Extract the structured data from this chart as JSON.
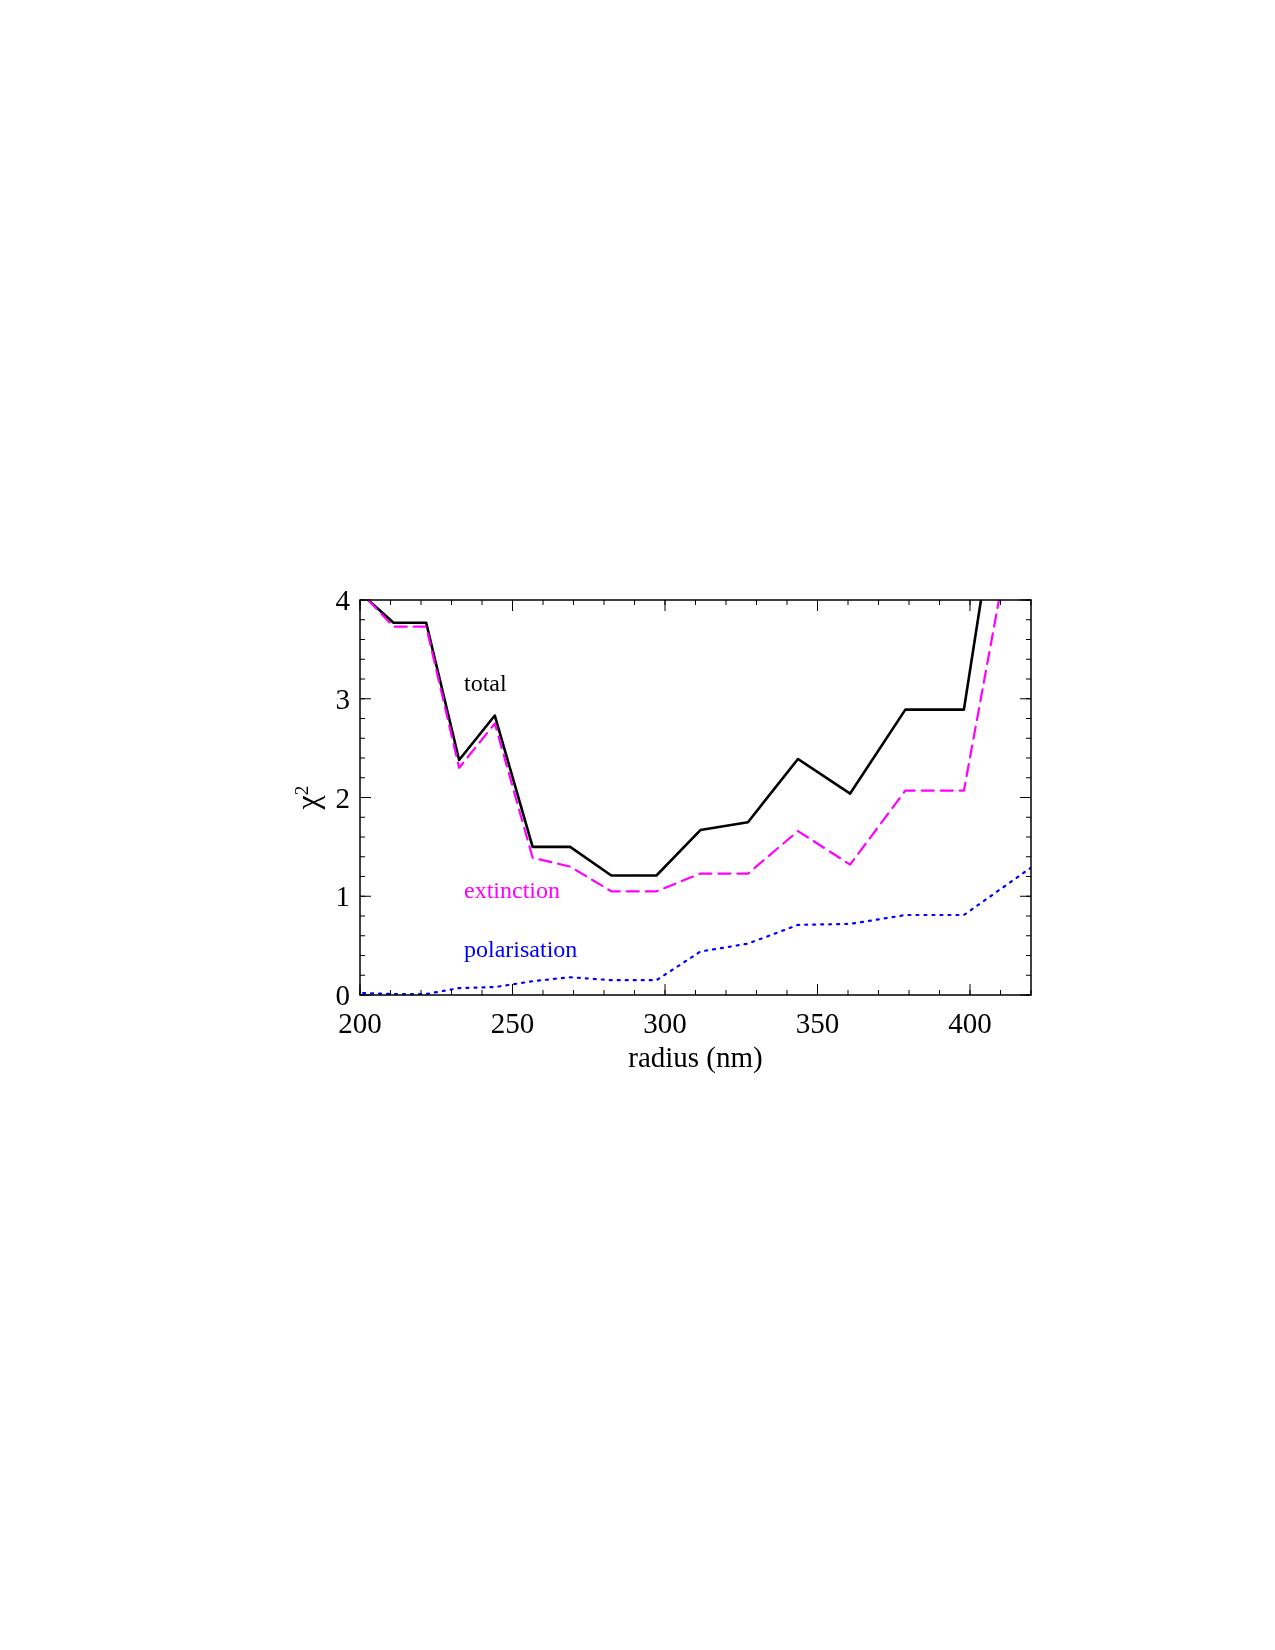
{
  "chart_data": {
    "type": "line",
    "xlabel": "radius (nm)",
    "ylabel": "χ$^{2}$",
    "xlim": [
      200,
      420
    ],
    "ylim": [
      0,
      4
    ],
    "xticks": [
      200,
      250,
      300,
      350,
      400
    ],
    "yticks": [
      0,
      1,
      2,
      3,
      4
    ],
    "grid": false,
    "series": [
      {
        "name": "total",
        "color": "#000000",
        "line_style": "solid",
        "x": [
          202.7,
          211,
          221.7,
          232.5,
          244.2,
          256.6,
          268.9,
          282.4,
          297.2,
          311.6,
          327.2,
          343.6,
          360.7,
          378.8,
          398.0,
          403.6
        ],
        "values": [
          4.0,
          3.77,
          3.77,
          2.38,
          2.83,
          1.5,
          1.5,
          1.21,
          1.21,
          1.67,
          1.75,
          2.39,
          2.04,
          2.89,
          2.89,
          4.0
        ]
      },
      {
        "name": "extinction",
        "color": "#ff00ff",
        "line_style": "dashed",
        "x": [
          202.7,
          211,
          221.7,
          232.5,
          244.2,
          256.6,
          268.9,
          282.4,
          297.2,
          311.6,
          327.2,
          343.6,
          360.7,
          378.8,
          398.0,
          409.5
        ],
        "values": [
          4.0,
          3.73,
          3.73,
          2.3,
          2.75,
          1.39,
          1.3,
          1.05,
          1.05,
          1.23,
          1.23,
          1.66,
          1.32,
          2.07,
          2.07,
          4.0
        ]
      },
      {
        "name": "polarisation",
        "color": "#0000ff",
        "line_style": "dotted",
        "x": [
          201,
          211,
          221.7,
          232.5,
          244.2,
          256.6,
          268.9,
          282.4,
          297.2,
          311.6,
          327.2,
          343.6,
          360.7,
          378.8,
          398.0,
          420
        ],
        "values": [
          0.02,
          0.01,
          0.01,
          0.07,
          0.08,
          0.14,
          0.18,
          0.15,
          0.15,
          0.44,
          0.52,
          0.71,
          0.72,
          0.81,
          0.81,
          1.29
        ]
      }
    ]
  }
}
